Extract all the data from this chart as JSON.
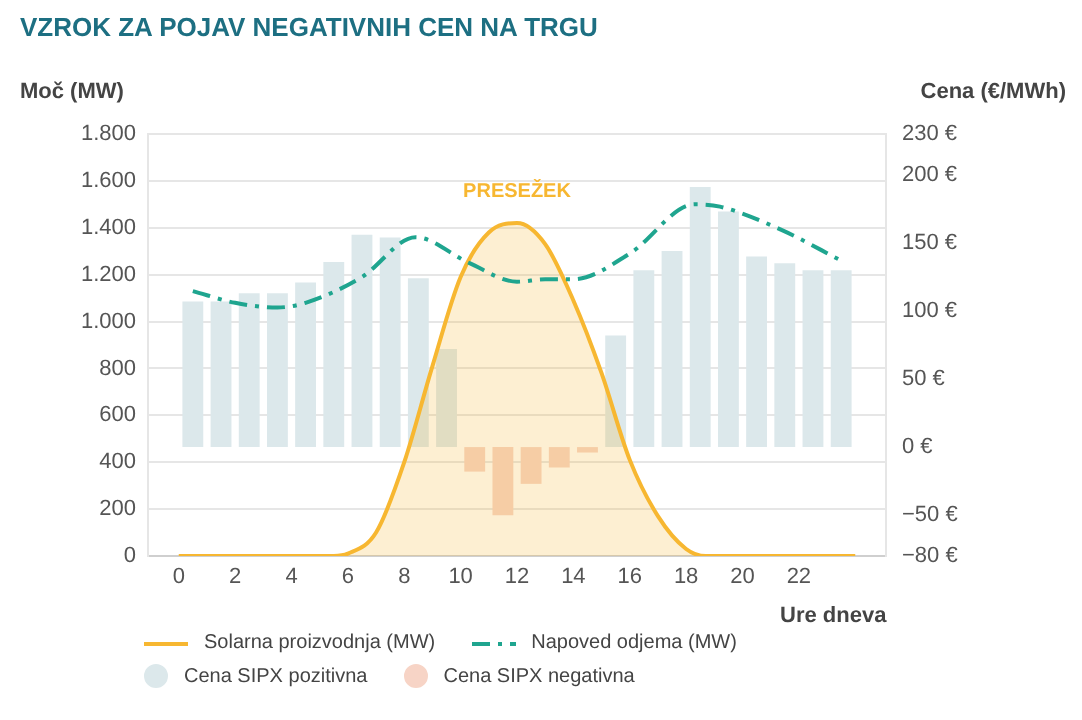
{
  "chart_data": {
    "type": "bar",
    "title": "VZROK ZA POJAV NEGATIVNIH CEN NA TRGU",
    "xlabel": "Ure dneva",
    "ylabel": "Moč (MW)",
    "y2label": "Cena (€/MWh)",
    "annotations": [
      "PRESEŽEK"
    ],
    "series": [
      {
        "name": "Cena SIPX pozitivna",
        "axis": "y2",
        "color": "#dce8eb",
        "x": [
          0.5,
          1.5,
          2.5,
          3.5,
          4.5,
          5.5,
          6.5,
          7.5,
          8.5,
          9.5,
          15.5,
          16.5,
          17.5,
          18.5,
          19.5,
          20.5,
          21.5,
          22.5,
          23.5
        ],
        "values": [
          107,
          107,
          113,
          113,
          121,
          136,
          156,
          154,
          124,
          72,
          82,
          130,
          144,
          191,
          173,
          140,
          135,
          130,
          130
        ]
      },
      {
        "name": "Cena SIPX negativna",
        "axis": "y2",
        "color": "#f7d4c6",
        "x": [
          10.5,
          11.5,
          12.5,
          13.5,
          14.5
        ],
        "values": [
          -18,
          -50,
          -27,
          -15,
          -4
        ]
      },
      {
        "name": "Solarna proizvodnja (MW)",
        "type": "area",
        "color": "#f7b731",
        "x": [
          0,
          5.5,
          6,
          7,
          8,
          9,
          10,
          11,
          12,
          13,
          14,
          15,
          16,
          17,
          18,
          18.7,
          24
        ],
        "values": [
          0,
          0,
          10,
          100,
          400,
          810,
          1190,
          1380,
          1420,
          1330,
          1090,
          780,
          410,
          170,
          30,
          0,
          0
        ]
      },
      {
        "name": "Napoved odjema (MW)",
        "type": "line",
        "line_style": "dashed",
        "color": "#1fa58f",
        "x": [
          0.5,
          2,
          3.5,
          4.5,
          6.5,
          8.4,
          10.3,
          12,
          13,
          14,
          16,
          18.3,
          19.2,
          21.4,
          23.5
        ],
        "values": [
          1130,
          1080,
          1060,
          1080,
          1190,
          1360,
          1250,
          1170,
          1180,
          1180,
          1290,
          1500,
          1490,
          1390,
          1260
        ]
      }
    ],
    "xlim": [
      0,
      24
    ],
    "xticks": [
      0,
      2,
      4,
      6,
      8,
      10,
      12,
      14,
      16,
      18,
      20,
      22
    ],
    "ylim": [
      0,
      1800
    ],
    "yticks": [
      0,
      200,
      400,
      600,
      800,
      {
        "value": 1000,
        "label": "1.000"
      },
      {
        "value": 1200,
        "label": "1.200"
      },
      {
        "value": 1400,
        "label": "1.400"
      },
      {
        "value": 1600,
        "label": "1.600"
      },
      {
        "value": 1800,
        "label": "1.800"
      }
    ],
    "y2lim": [
      -80,
      230
    ],
    "y2ticks": [
      {
        "value": 230,
        "label": "230 €"
      },
      {
        "value": 200,
        "label": "200 €"
      },
      {
        "value": 150,
        "label": "150 €"
      },
      {
        "value": 100,
        "label": "100 €"
      },
      {
        "value": 50,
        "label": "50 €"
      },
      {
        "value": 0,
        "label": "0 €"
      },
      {
        "value": -50,
        "label": "−50 €"
      },
      {
        "value": -80,
        "label": "−80 €"
      }
    ],
    "grid": "y",
    "legend": "bottom",
    "marker": "none"
  }
}
